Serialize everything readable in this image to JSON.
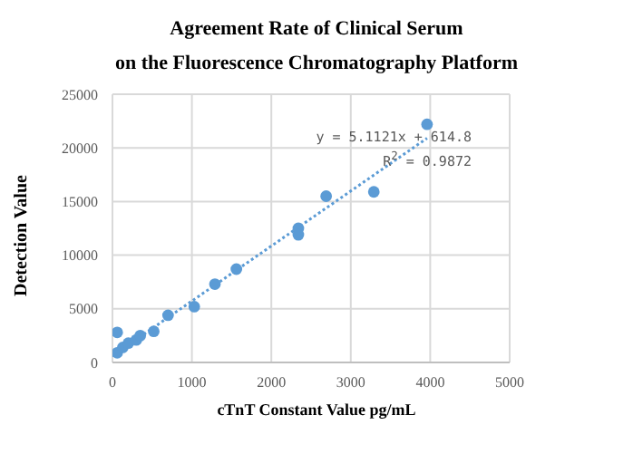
{
  "chart_data": {
    "type": "scatter",
    "title": "Agreement Rate of Clinical Serum",
    "subtitle": "on the Fluorescence Chromatography Platform",
    "xlabel": "cTnT Constant Value pg/mL",
    "ylabel": "Detection Value",
    "xlim": [
      0,
      5000
    ],
    "xticks": [
      0,
      1000,
      2000,
      3000,
      4000,
      5000
    ],
    "ylim": [
      0,
      25000
    ],
    "yticks": [
      0,
      5000,
      10000,
      15000,
      20000,
      25000
    ],
    "grid": true,
    "marker": "circle",
    "annotations": [
      "y = 5.1121x + 614.8",
      "R$^{2}$ = 0.9872"
    ],
    "series": [
      {
        "color": "#5b9bd5",
        "x": [
          60,
          60,
          130,
          200,
          300,
          350,
          520,
          700,
          1030,
          1290,
          1560,
          2340,
          2340,
          2690,
          3290,
          3960
        ],
        "values": [
          900,
          2800,
          1400,
          1800,
          2100,
          2500,
          2900,
          4400,
          5200,
          7300,
          8700,
          12500,
          11900,
          15500,
          15900,
          22200
        ]
      },
      {
        "type": "line",
        "color": "#5b9bd5",
        "line_style": "dotted",
        "marker": "none",
        "x": [
          0,
          3960
        ],
        "values": [
          600,
          20900
        ]
      }
    ]
  }
}
